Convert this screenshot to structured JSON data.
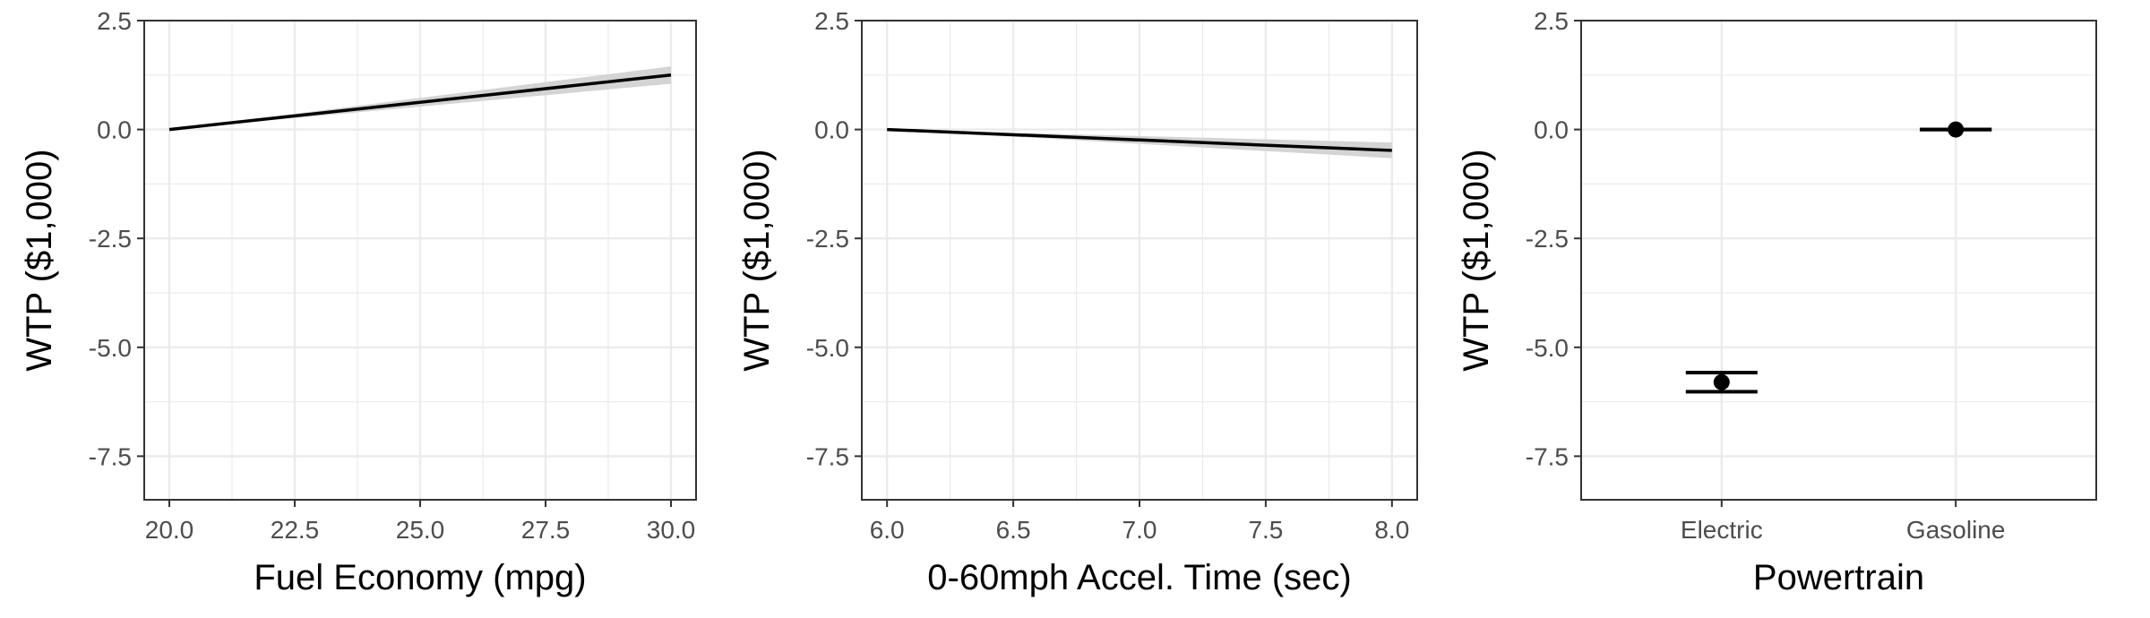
{
  "chart_data": [
    {
      "type": "line",
      "xlabel": "Fuel Economy (mpg)",
      "ylabel": "WTP ($1,000)",
      "xlim": [
        19.5,
        30.5
      ],
      "ylim": [
        -8.5,
        2.5
      ],
      "x_ticks": [
        "20.0",
        "22.5",
        "25.0",
        "27.5",
        "30.0"
      ],
      "x_tick_values": [
        20,
        22.5,
        25,
        27.5,
        30
      ],
      "y_ticks": [
        "2.5",
        "0.0",
        "-2.5",
        "-5.0",
        "-7.5"
      ],
      "y_tick_values": [
        2.5,
        0,
        -2.5,
        -5,
        -7.5
      ],
      "grid": true,
      "series": [
        {
          "x": [
            20,
            30
          ],
          "y": [
            0.0,
            1.25
          ],
          "ci_lower": [
            0.0,
            1.05
          ],
          "ci_upper": [
            0.0,
            1.45
          ]
        }
      ]
    },
    {
      "type": "line",
      "xlabel": "0-60mph Accel. Time (sec)",
      "ylabel": "WTP ($1,000)",
      "xlim": [
        5.9,
        8.1
      ],
      "ylim": [
        -8.5,
        2.5
      ],
      "x_ticks": [
        "6.0",
        "6.5",
        "7.0",
        "7.5",
        "8.0"
      ],
      "x_tick_values": [
        6,
        6.5,
        7,
        7.5,
        8
      ],
      "y_ticks": [
        "2.5",
        "0.0",
        "-2.5",
        "-5.0",
        "-7.5"
      ],
      "y_tick_values": [
        2.5,
        0,
        -2.5,
        -5,
        -7.5
      ],
      "grid": true,
      "series": [
        {
          "x": [
            6,
            8
          ],
          "y": [
            0.0,
            -0.48
          ],
          "ci_lower": [
            0.0,
            -0.66
          ],
          "ci_upper": [
            0.0,
            -0.3
          ]
        }
      ]
    },
    {
      "type": "scatter",
      "xlabel": "Powertrain",
      "ylabel": "WTP ($1,000)",
      "ylim": [
        -8.5,
        2.5
      ],
      "categories": [
        "Electric",
        "Gasoline"
      ],
      "y_ticks": [
        "2.5",
        "0.0",
        "-2.5",
        "-5.0",
        "-7.5"
      ],
      "y_tick_values": [
        2.5,
        0,
        -2.5,
        -5,
        -7.5
      ],
      "grid": true,
      "series": [
        {
          "values": [
            -5.8,
            0.0
          ],
          "ci_lower": [
            -6.02,
            0.0
          ],
          "ci_upper": [
            -5.58,
            0.0
          ]
        }
      ]
    }
  ]
}
